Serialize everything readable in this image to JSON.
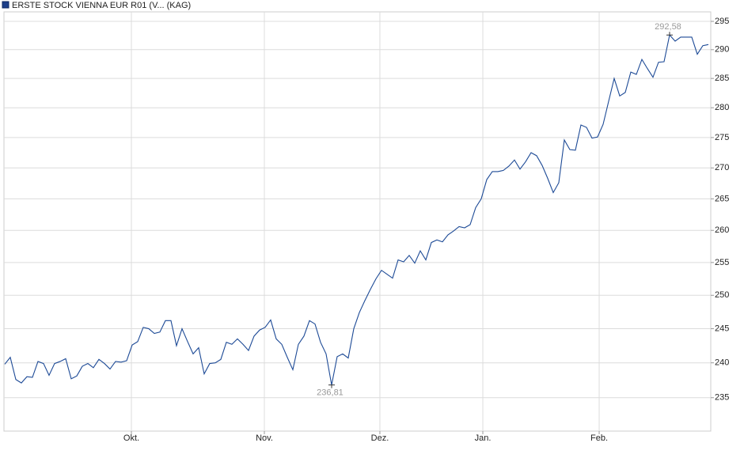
{
  "chart_data": {
    "type": "line",
    "title": "ERSTE STOCK VIENNA EUR R01 (V... (KAG)",
    "log_scale": true,
    "grid": true,
    "x": [
      0,
      1,
      2,
      3,
      4,
      5,
      6,
      7,
      8,
      9,
      10,
      11,
      12,
      13,
      14,
      15,
      16,
      17,
      18,
      19,
      20,
      21,
      22,
      23,
      24,
      25,
      26,
      27,
      28,
      29,
      30,
      31,
      32,
      33,
      34,
      35,
      36,
      37,
      38,
      39,
      40,
      41,
      42,
      43,
      44,
      45,
      46,
      47,
      48,
      49,
      50,
      51,
      52,
      53,
      54,
      55,
      56,
      57,
      58,
      59,
      60,
      61,
      62,
      63,
      64,
      65,
      66,
      67,
      68,
      69,
      70,
      71,
      72,
      73,
      74,
      75,
      76,
      77,
      78,
      79,
      80,
      81,
      82,
      83,
      84,
      85,
      86,
      87,
      88,
      89,
      90,
      91,
      92,
      93,
      94,
      95,
      96,
      97,
      98,
      99,
      100,
      101,
      102,
      103,
      104,
      105,
      106,
      107,
      108,
      109,
      110,
      111,
      112,
      113,
      114,
      115,
      116,
      117,
      118,
      119,
      120,
      121,
      122,
      123,
      124,
      125,
      126,
      127
    ],
    "series": [
      {
        "name": "ERSTE STOCK VIENNA EUR R01 (V... (KAG)",
        "color": "#1d4a96",
        "values": [
          239.8,
          240.8,
          237.6,
          237.1,
          238.0,
          237.9,
          240.2,
          239.9,
          238.2,
          239.9,
          240.2,
          240.6,
          237.7,
          238.1,
          239.5,
          239.9,
          239.3,
          240.5,
          239.9,
          239.1,
          240.2,
          240.1,
          240.3,
          242.6,
          243.1,
          245.2,
          245.0,
          244.3,
          244.5,
          246.2,
          246.2,
          242.5,
          245.0,
          243.1,
          241.3,
          242.2,
          238.4,
          239.9,
          240.0,
          240.5,
          243.0,
          242.7,
          243.5,
          242.7,
          241.8,
          243.9,
          244.8,
          245.2,
          246.3,
          243.5,
          242.7,
          240.8,
          239.0,
          242.7,
          243.9,
          246.2,
          245.7,
          243.0,
          241.3,
          236.81,
          240.9,
          241.3,
          240.7,
          245.0,
          247.4,
          249.2,
          250.9,
          252.5,
          253.8,
          253.2,
          252.6,
          255.4,
          255.1,
          256.1,
          254.9,
          256.8,
          255.4,
          258.1,
          258.5,
          258.2,
          259.3,
          259.9,
          260.6,
          260.4,
          260.9,
          263.6,
          265.0,
          268.1,
          269.4,
          269.4,
          269.6,
          270.3,
          271.3,
          269.8,
          271.0,
          272.5,
          272.0,
          270.4,
          268.3,
          266.0,
          267.6,
          274.6,
          273.0,
          272.9,
          277.1,
          276.7,
          274.9,
          275.1,
          277.2,
          281.1,
          285.0,
          282.0,
          282.6,
          286.1,
          285.7,
          288.3,
          286.7,
          285.2,
          287.8,
          287.9,
          292.58,
          291.5,
          292.2,
          292.2,
          292.2,
          289.2,
          290.7,
          290.9
        ]
      }
    ],
    "xlim": [
      -0.14,
      127.43
    ],
    "xticks": [
      {
        "value": 22.86,
        "label": "Okt."
      },
      {
        "value": 46.86,
        "label": "Nov."
      },
      {
        "value": 67.71,
        "label": "Dez."
      },
      {
        "value": 86.29,
        "label": "Jan."
      },
      {
        "value": 107.29,
        "label": "Feb."
      }
    ],
    "ylim": [
      230.3,
      296.7
    ],
    "yticks": [
      235,
      240,
      245,
      250,
      255,
      260,
      265,
      270,
      275,
      280,
      285,
      290,
      295
    ],
    "annotations": [
      {
        "label": "292,58",
        "x": 120,
        "y": 292.58,
        "position": "above"
      },
      {
        "label": "236,81",
        "x": 59,
        "y": 236.81,
        "position": "below"
      }
    ]
  }
}
